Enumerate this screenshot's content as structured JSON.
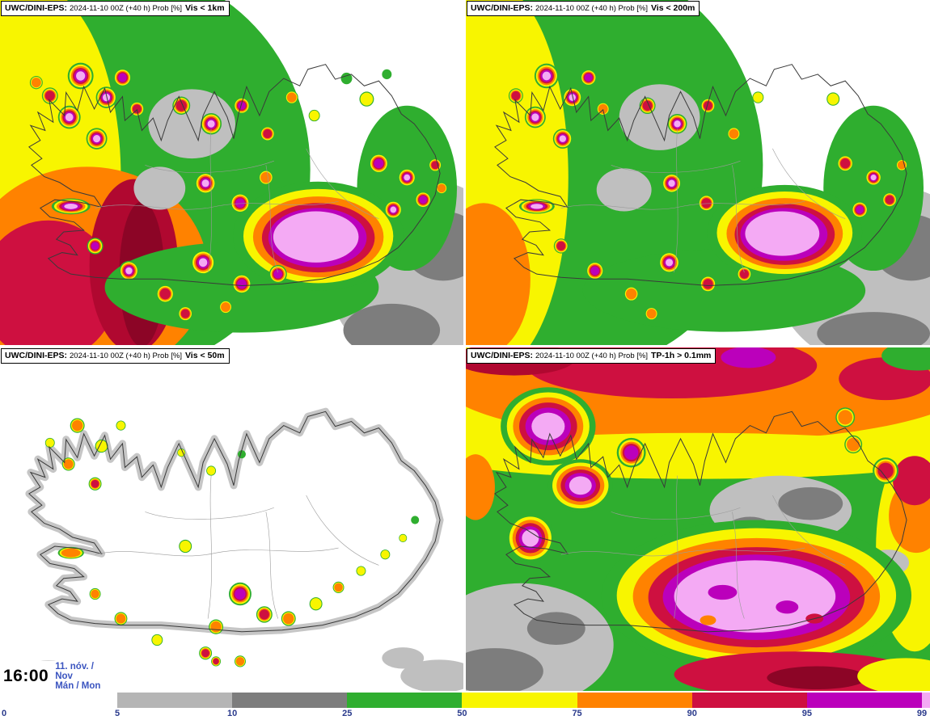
{
  "panels": [
    {
      "model": "UWC/DINI-EPS:",
      "meta": "2024-11-10 00Z (+40 h) Prob [%]",
      "variable": "Vis < 1km"
    },
    {
      "model": "UWC/DINI-EPS:",
      "meta": "2024-11-10 00Z (+40 h) Prob [%]",
      "variable": "Vis < 200m"
    },
    {
      "model": "UWC/DINI-EPS:",
      "meta": "2024-11-10 00Z (+40 h) Prob [%]",
      "variable": "Vis < 50m"
    },
    {
      "model": "UWC/DINI-EPS:",
      "meta": "2024-11-10 00Z (+40 h) Prob [%]",
      "variable": "TP-1h > 0.1mm"
    }
  ],
  "footer": {
    "time": "16:00",
    "date_line": "11. nóv. /",
    "date_line_en": "Nov",
    "weekday_line": "Mán / Mon"
  },
  "colorbar": {
    "unit": "%",
    "ticks": [
      "0",
      "5",
      "10",
      "25",
      "50",
      "75",
      "90",
      "95",
      "99"
    ],
    "segments": [
      {
        "range": "5-10",
        "color": "#b5b5b5"
      },
      {
        "range": "10-25",
        "color": "#7d7d7d"
      },
      {
        "range": "25-50",
        "color": "#2fae2f"
      },
      {
        "range": "50-75",
        "color": "#f8f500"
      },
      {
        "range": "75-90",
        "color": "#ff8200"
      },
      {
        "range": "90-95",
        "color": "#ce1040"
      },
      {
        "range": "95-99",
        "color": "#bb00bb"
      },
      {
        "range": "99-100",
        "color": "#f4aaf4"
      }
    ]
  },
  "chart_data": {
    "type": "heatmap",
    "title": "UWC/DINI-EPS ensemble probability forecast for Iceland, run 2024-11-10 00Z, lead +40 h, valid Mon 11 Nov 16:00",
    "panels": [
      "Vis < 1km",
      "Vis < 200m",
      "Vis < 50m",
      "TP-1h > 0.1mm"
    ],
    "legend_levels_percent": [
      0,
      5,
      10,
      25,
      50,
      75,
      90,
      95,
      99
    ],
    "legend_colors": [
      "#ffffff",
      "#b5b5b5",
      "#7d7d7d",
      "#2fae2f",
      "#f8f500",
      "#ff8200",
      "#ce1040",
      "#bb00bb",
      "#f4aaf4"
    ],
    "legend_position": "bottom"
  }
}
